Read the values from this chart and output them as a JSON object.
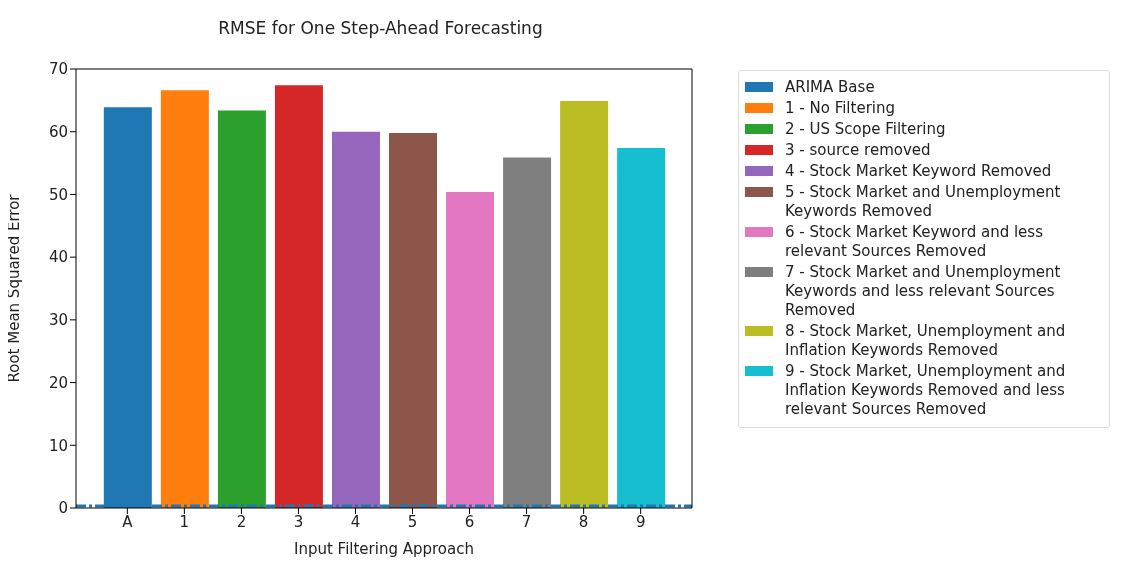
{
  "chart_data": {
    "type": "bar",
    "title": "RMSE for One Step-Ahead Forecasting",
    "xlabel": "Input Filtering Approach",
    "ylabel": "Root Mean Squared Error",
    "categories": [
      "A",
      "1",
      "2",
      "3",
      "4",
      "5",
      "6",
      "7",
      "8",
      "9"
    ],
    "stacked": true,
    "series": [
      {
        "name": "ARIMA Base",
        "color": "#1f77b4",
        "values": [
          63.9,
          null,
          null,
          null,
          null,
          null,
          null,
          null,
          null,
          null
        ]
      },
      {
        "name": "1 - No Filtering",
        "color": "#ff7f0e",
        "values": [
          null,
          66.6,
          null,
          null,
          null,
          null,
          null,
          null,
          null,
          null
        ]
      },
      {
        "name": "2 - US Scope Filtering",
        "color": "#2ca02c",
        "values": [
          null,
          null,
          63.4,
          null,
          null,
          null,
          null,
          null,
          null,
          null
        ]
      },
      {
        "name": "3 - source removed",
        "color": "#d62728",
        "values": [
          null,
          null,
          null,
          67.4,
          null,
          null,
          null,
          null,
          null,
          null
        ]
      },
      {
        "name": "4 - Stock Market Keyword Removed",
        "color": "#9467bd",
        "values": [
          null,
          null,
          null,
          null,
          60.0,
          null,
          null,
          null,
          null,
          null
        ]
      },
      {
        "name": "5 - Stock Market and Unemployment Keywords Removed",
        "color": "#8c564b",
        "values": [
          null,
          null,
          null,
          null,
          null,
          59.8,
          null,
          null,
          null,
          null
        ]
      },
      {
        "name": "6 - Stock Market Keyword and less relevant Sources Removed",
        "color": "#e377c2",
        "values": [
          null,
          null,
          null,
          null,
          null,
          null,
          50.4,
          null,
          null,
          null
        ]
      },
      {
        "name": "7 - Stock Market and Unemployment Keywords and less relevant Sources Removed",
        "color": "#7f7f7f",
        "values": [
          null,
          null,
          null,
          null,
          null,
          null,
          null,
          55.9,
          null,
          null
        ]
      },
      {
        "name": "8 - Stock Market, Unemployment and Inflation Keywords Removed",
        "color": "#bcbd22",
        "values": [
          null,
          null,
          null,
          null,
          null,
          null,
          null,
          null,
          64.9,
          null
        ]
      },
      {
        "name": "9 - Stock Market, Unemployment and Inflation Keywords Removed and less relevant Sources Removed",
        "color": "#17becf",
        "values": [
          null,
          null,
          null,
          null,
          null,
          null,
          null,
          null,
          null,
          57.4
        ]
      }
    ],
    "ylim": [
      0,
      70
    ],
    "yticks": [
      0,
      10,
      20,
      30,
      40,
      50,
      60,
      70
    ],
    "ref_lines": [
      {
        "axis": "y",
        "value": 0.3,
        "color": "#1f77b4",
        "line_style": "dashed"
      }
    ],
    "grid": false,
    "legend": "right"
  }
}
